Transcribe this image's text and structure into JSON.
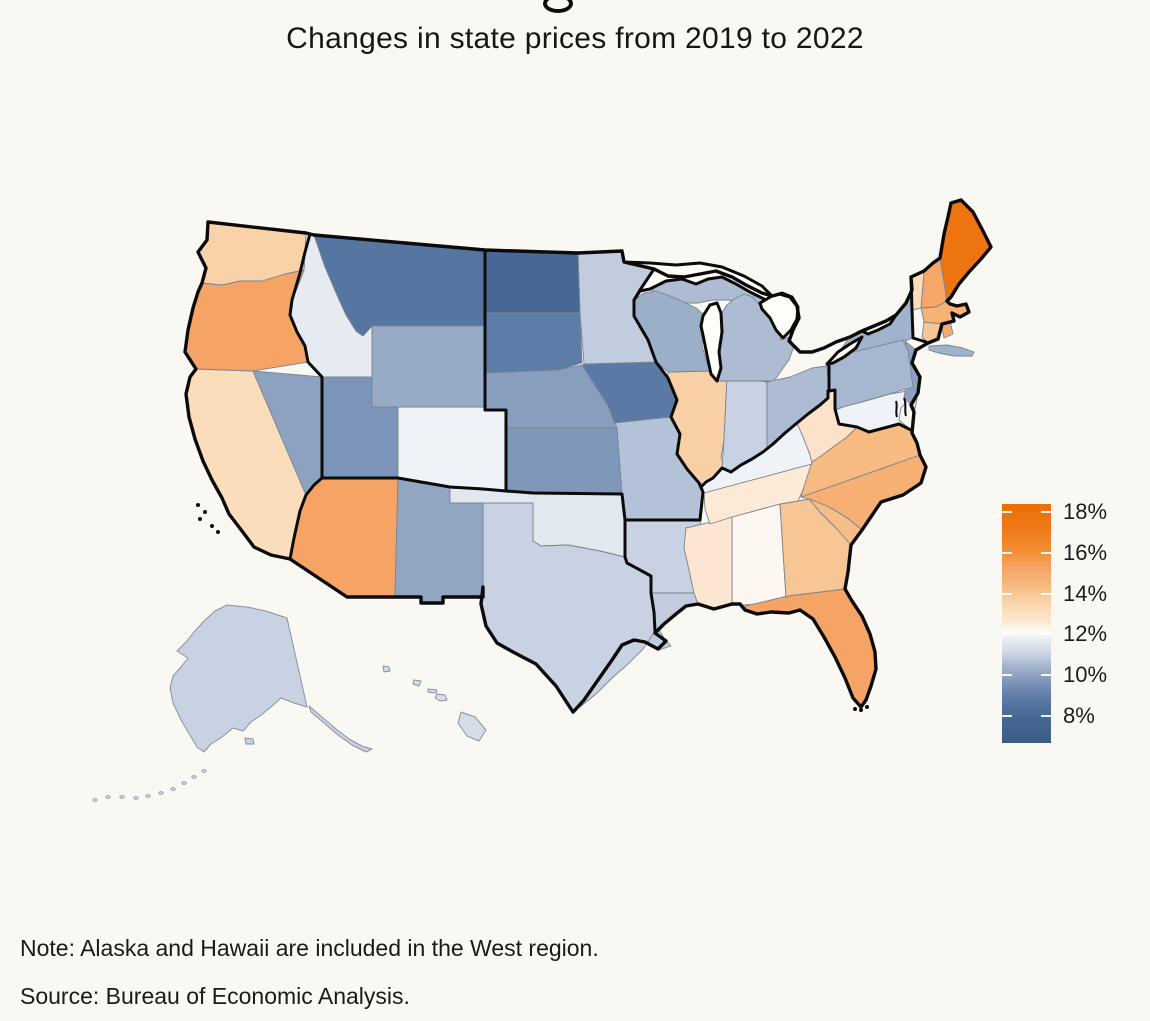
{
  "title": "Changes in state prices from 2019 to 2022",
  "notes": {
    "note": "Note: Alaska and Hawaii are included in the West region.",
    "source": "Source: Bureau of Economic Analysis."
  },
  "legend": {
    "tick_labels": [
      "18%",
      "16%",
      "14%",
      "12%",
      "10%",
      "8%"
    ],
    "tick_values": [
      18,
      16,
      14,
      12,
      10,
      8
    ],
    "top_value": 18.39,
    "bottom_value": 6.68
  },
  "colors": {
    "background": "#faf8f2",
    "text": "#1a1a1a",
    "national_border": "#0b0b0b",
    "region_border": "#0b0b0b",
    "state_border": "#7b8590",
    "inset_border": "#8a93a0",
    "water": "#fffdf8",
    "scale_stops": [
      [
        6.7,
        "#3a5d85"
      ],
      [
        8.0,
        "#486996"
      ],
      [
        9.0,
        "#5f7ea9"
      ],
      [
        10.0,
        "#8da2c0"
      ],
      [
        10.5,
        "#a6b7cf"
      ],
      [
        11.0,
        "#c8d2e2"
      ],
      [
        11.5,
        "#dee5ee"
      ],
      [
        11.9,
        "#eff2f7"
      ],
      [
        12.05,
        "#fbfbfa"
      ],
      [
        12.3,
        "#fdf4ea"
      ],
      [
        12.7,
        "#fce6d1"
      ],
      [
        13.2,
        "#fbdcbb"
      ],
      [
        13.7,
        "#f9d0a5"
      ],
      [
        14.0,
        "#f8c694"
      ],
      [
        14.5,
        "#f7b77c"
      ],
      [
        15.3,
        "#f5a465"
      ],
      [
        16.0,
        "#f29036"
      ],
      [
        17.0,
        "#ef7d1c"
      ],
      [
        18.4,
        "#eb6e05"
      ]
    ]
  },
  "chart_data": {
    "type": "heatmap",
    "subtype": "us-state-choropleth",
    "title": "Changes in state prices from 2019 to 2022",
    "unit": "%",
    "legend_range": [
      8,
      18
    ],
    "states": [
      {
        "code": "AL",
        "name": "Alabama",
        "value": 12.2
      },
      {
        "code": "AK",
        "name": "Alaska",
        "value": 11.0
      },
      {
        "code": "AZ",
        "name": "Arizona",
        "value": 15.3
      },
      {
        "code": "AR",
        "name": "Arkansas",
        "value": 11.0
      },
      {
        "code": "CA",
        "name": "California",
        "value": 13.2
      },
      {
        "code": "CO",
        "name": "Colorado",
        "value": 11.9
      },
      {
        "code": "CT",
        "name": "Connecticut",
        "value": 14.0
      },
      {
        "code": "DE",
        "name": "Delaware",
        "value": 11.5
      },
      {
        "code": "FL",
        "name": "Florida",
        "value": 15.3
      },
      {
        "code": "GA",
        "name": "Georgia",
        "value": 14.0
      },
      {
        "code": "HI",
        "name": "Hawaii",
        "value": 11.3
      },
      {
        "code": "ID",
        "name": "Idaho",
        "value": 11.7
      },
      {
        "code": "IL",
        "name": "Illinois",
        "value": 13.7
      },
      {
        "code": "IN",
        "name": "Indiana",
        "value": 11.0
      },
      {
        "code": "IA",
        "name": "Iowa",
        "value": 8.8
      },
      {
        "code": "KS",
        "name": "Kansas",
        "value": 9.7
      },
      {
        "code": "KY",
        "name": "Kentucky",
        "value": 11.9
      },
      {
        "code": "LA",
        "name": "Louisiana",
        "value": 10.9
      },
      {
        "code": "ME",
        "name": "Maine",
        "value": 17.8
      },
      {
        "code": "MD",
        "name": "Maryland",
        "value": 11.9
      },
      {
        "code": "MA",
        "name": "Massachusetts",
        "value": 14.7
      },
      {
        "code": "MI",
        "name": "Michigan",
        "value": 10.6
      },
      {
        "code": "MN",
        "name": "Minnesota",
        "value": 10.9
      },
      {
        "code": "MS",
        "name": "Mississippi",
        "value": 12.7
      },
      {
        "code": "MO",
        "name": "Missouri",
        "value": 10.7
      },
      {
        "code": "MT",
        "name": "Montana",
        "value": 8.6
      },
      {
        "code": "NE",
        "name": "Nebraska",
        "value": 9.9
      },
      {
        "code": "NV",
        "name": "Nevada",
        "value": 10.0
      },
      {
        "code": "NH",
        "name": "New Hampshire",
        "value": 15.2
      },
      {
        "code": "NJ",
        "name": "New Jersey",
        "value": 10.0
      },
      {
        "code": "NM",
        "name": "New Mexico",
        "value": 10.1
      },
      {
        "code": "NY",
        "name": "New York",
        "value": 10.4
      },
      {
        "code": "NC",
        "name": "North Carolina",
        "value": 14.8
      },
      {
        "code": "ND",
        "name": "North Dakota",
        "value": 7.9
      },
      {
        "code": "OH",
        "name": "Ohio",
        "value": 10.6
      },
      {
        "code": "OK",
        "name": "Oklahoma",
        "value": 11.6
      },
      {
        "code": "OR",
        "name": "Oregon",
        "value": 15.3
      },
      {
        "code": "PA",
        "name": "Pennsylvania",
        "value": 10.5
      },
      {
        "code": "RI",
        "name": "Rhode Island",
        "value": 15.0
      },
      {
        "code": "SC",
        "name": "South Carolina",
        "value": 14.3
      },
      {
        "code": "SD",
        "name": "South Dakota",
        "value": 8.9
      },
      {
        "code": "TN",
        "name": "Tennessee",
        "value": 12.6
      },
      {
        "code": "TX",
        "name": "Texas",
        "value": 11.0
      },
      {
        "code": "UT",
        "name": "Utah",
        "value": 9.6
      },
      {
        "code": "VT",
        "name": "Vermont",
        "value": 13.2
      },
      {
        "code": "VA",
        "name": "Virginia",
        "value": 14.4
      },
      {
        "code": "WA",
        "name": "Washington",
        "value": 13.6
      },
      {
        "code": "WV",
        "name": "West Virginia",
        "value": 12.9
      },
      {
        "code": "WI",
        "name": "Wisconsin",
        "value": 10.3
      },
      {
        "code": "WY",
        "name": "Wyoming",
        "value": 10.2
      }
    ]
  }
}
